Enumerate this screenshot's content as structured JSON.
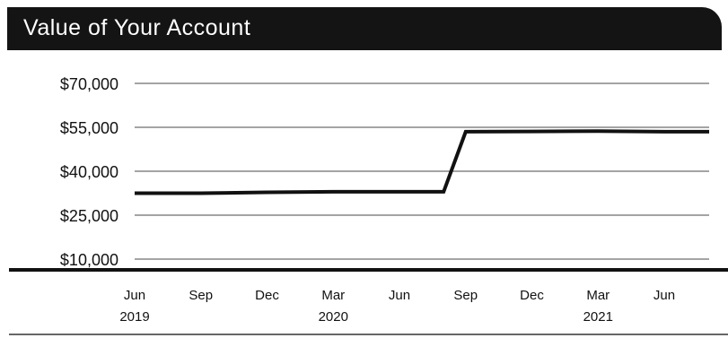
{
  "chart_data": {
    "type": "line",
    "title": "Value of Your Account",
    "xlabel": "",
    "ylabel": "",
    "ylim": [
      10000,
      70000
    ],
    "yticks": [
      70000,
      55000,
      40000,
      25000,
      10000
    ],
    "ytick_labels": [
      "$70,000",
      "$55,000",
      "$40,000",
      "$25,000",
      "$10,000"
    ],
    "xticks": [
      {
        "date": "2019-06",
        "label": "Jun",
        "year": "2019"
      },
      {
        "date": "2019-09",
        "label": "Sep",
        "year": ""
      },
      {
        "date": "2019-12",
        "label": "Dec",
        "year": ""
      },
      {
        "date": "2020-03",
        "label": "Mar",
        "year": "2020"
      },
      {
        "date": "2020-06",
        "label": "Jun",
        "year": ""
      },
      {
        "date": "2020-09",
        "label": "Sep",
        "year": ""
      },
      {
        "date": "2020-12",
        "label": "Dec",
        "year": ""
      },
      {
        "date": "2021-03",
        "label": "Mar",
        "year": "2021"
      },
      {
        "date": "2021-06",
        "label": "Jun",
        "year": ""
      }
    ],
    "xlim": [
      "2019-04",
      "2021-09"
    ],
    "grid": true,
    "series": [
      {
        "x": [
          "2019-04",
          "2019-06",
          "2019-09",
          "2019-12",
          "2020-03",
          "2020-06",
          "2020-08",
          "2020-09",
          "2020-12",
          "2021-03",
          "2021-06",
          "2021-09"
        ],
        "values": [
          32500,
          32500,
          32500,
          32800,
          33000,
          33000,
          33000,
          53500,
          53600,
          53700,
          53500,
          53500
        ],
        "color": "#111111"
      }
    ]
  }
}
